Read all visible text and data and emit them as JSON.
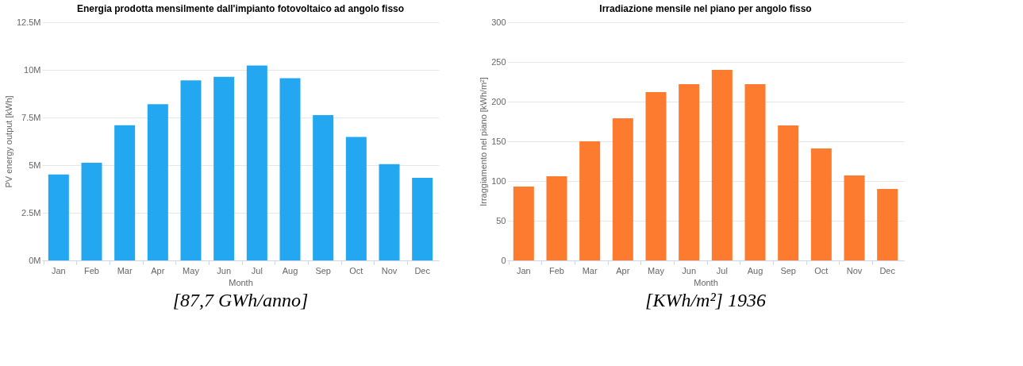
{
  "chart_data": [
    {
      "type": "bar",
      "title": "Energia prodotta mensilmente dall'impianto fotovoltaico ad angolo fisso",
      "xlabel": "Month",
      "ylabel": "PV energy output [kWh]",
      "categories": [
        "Jan",
        "Feb",
        "Mar",
        "Apr",
        "May",
        "Jun",
        "Jul",
        "Aug",
        "Sep",
        "Oct",
        "Nov",
        "Dec"
      ],
      "series": [
        {
          "color": "#22a7f0",
          "values": [
            4510000,
            5120000,
            7090000,
            8200000,
            9450000,
            9640000,
            10230000,
            9560000,
            7620000,
            6480000,
            5050000,
            4330000
          ]
        }
      ],
      "ylim": [
        0,
        12500000
      ],
      "yticks": [
        {
          "value": 0,
          "label": "0M"
        },
        {
          "value": 2500000,
          "label": "2.5M"
        },
        {
          "value": 5000000,
          "label": "5M"
        },
        {
          "value": 7500000,
          "label": "7.5M"
        },
        {
          "value": 10000000,
          "label": "10M"
        },
        {
          "value": 12500000,
          "label": "12.5M"
        }
      ],
      "grid": "y",
      "annotations": [
        "[87,7 GWh/anno]"
      ]
    },
    {
      "type": "bar",
      "title": "Irradiazione mensile nel piano per angolo fisso",
      "xlabel": "Month",
      "ylabel": "Irraggiamento nel piano [kWh/m²]",
      "categories": [
        "Jan",
        "Feb",
        "Mar",
        "Apr",
        "May",
        "Jun",
        "Jul",
        "Aug",
        "Sep",
        "Oct",
        "Nov",
        "Dec"
      ],
      "series": [
        {
          "color": "#fd7b2f",
          "values": [
            93,
            106,
            150,
            179,
            212,
            222,
            240,
            222,
            170,
            141,
            107,
            90
          ]
        }
      ],
      "ylim": [
        0,
        300
      ],
      "yticks": [
        0,
        50,
        100,
        150,
        200,
        250,
        300
      ],
      "grid": "y",
      "annotations": [
        "[KWh/m²] 1936"
      ]
    }
  ]
}
